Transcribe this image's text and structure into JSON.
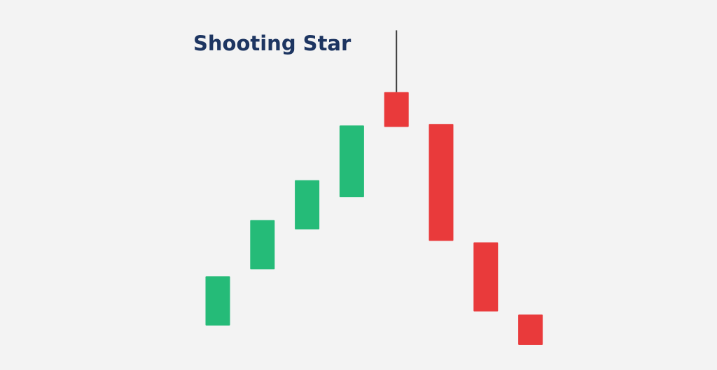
{
  "chart_data": {
    "type": "candlestick",
    "title": "Shooting Star",
    "xlabel": "",
    "ylabel": "",
    "grid": false,
    "legend": "none",
    "ylim": [
      0,
      100
    ],
    "colors": {
      "background": "#f3f3f3",
      "bullish": "#25bb78",
      "bearish": "#e93a3b",
      "wick": "#3d3d3d",
      "title": "#1d3561"
    },
    "candles": [
      {
        "index": 1,
        "direction": "up",
        "open": 12.0,
        "close": 25.3,
        "high": 25.3,
        "low": 12.0
      },
      {
        "index": 2,
        "direction": "up",
        "open": 27.2,
        "close": 40.5,
        "high": 40.5,
        "low": 27.2
      },
      {
        "index": 3,
        "direction": "up",
        "open": 38.0,
        "close": 51.3,
        "high": 51.3,
        "low": 38.0
      },
      {
        "index": 4,
        "direction": "up",
        "open": 46.7,
        "close": 66.1,
        "high": 66.1,
        "low": 46.7
      },
      {
        "index": 5,
        "direction": "down",
        "open": 75.1,
        "close": 65.7,
        "high": 91.8,
        "low": 65.7
      },
      {
        "index": 6,
        "direction": "down",
        "open": 66.5,
        "close": 34.9,
        "high": 66.5,
        "low": 34.9
      },
      {
        "index": 7,
        "direction": "down",
        "open": 34.5,
        "close": 15.8,
        "high": 34.5,
        "low": 15.8
      },
      {
        "index": 8,
        "direction": "down",
        "open": 15.0,
        "close": 6.8,
        "high": 15.0,
        "low": 6.8
      }
    ]
  }
}
